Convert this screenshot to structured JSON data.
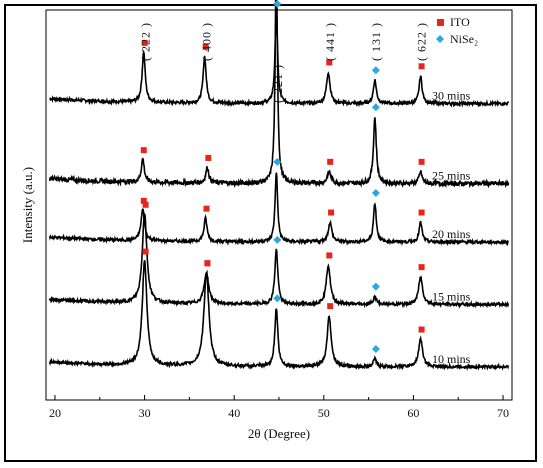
{
  "chart_data": {
    "type": "line",
    "title": "",
    "xlabel": "2θ (Degree)",
    "ylabel": "Intensity (a.u.)",
    "xlim": [
      19,
      71
    ],
    "xticks": [
      20,
      30,
      40,
      50,
      60,
      70
    ],
    "x_tick_labels": [
      "20",
      "30",
      "40",
      "50",
      "60",
      "70"
    ],
    "y_ticks_shown": false,
    "grid": false,
    "legend_position": "top-right",
    "legend": [
      {
        "name": "ITO",
        "marker": "square",
        "color": "#e8251b"
      },
      {
        "name": "NiSe₂",
        "marker": "diamond",
        "color": "#29a9e0"
      }
    ],
    "peak_labels": [
      {
        "text": "( 222 )",
        "x": 30.0
      },
      {
        "text": "( 400 )",
        "x": 36.8
      },
      {
        "text": "( 221 )",
        "x": 44.8
      },
      {
        "text": "( 441 )",
        "x": 50.6
      },
      {
        "text": "( 131 )",
        "x": 55.7
      },
      {
        "text": "( 622 )",
        "x": 60.8
      }
    ],
    "series": [
      {
        "name": "30  mins",
        "baseline": 0.76,
        "noise": 0.004,
        "peaks": [
          {
            "x": 29.9,
            "height": 0.13,
            "width": 0.3,
            "marker": "ITO"
          },
          {
            "x": 36.7,
            "height": 0.12,
            "width": 0.3,
            "marker": "ITO"
          },
          {
            "x": 44.7,
            "height": 0.23,
            "width": 0.25,
            "marker": "NiSe2"
          },
          {
            "x": 50.5,
            "height": 0.08,
            "width": 0.35,
            "marker": "ITO"
          },
          {
            "x": 55.7,
            "height": 0.06,
            "width": 0.3,
            "marker": "NiSe2"
          },
          {
            "x": 60.8,
            "height": 0.07,
            "width": 0.3,
            "marker": "ITO"
          }
        ]
      },
      {
        "name": "25 mins",
        "baseline": 0.555,
        "noise": 0.006,
        "peaks": [
          {
            "x": 29.8,
            "height": 0.06,
            "width": 0.3,
            "marker": "ITO"
          },
          {
            "x": 37.0,
            "height": 0.04,
            "width": 0.3,
            "marker": "ITO"
          },
          {
            "x": 44.7,
            "height": 0.58,
            "width": 0.22,
            "marker": "NiSe2"
          },
          {
            "x": 50.6,
            "height": 0.03,
            "width": 0.35,
            "marker": "ITO"
          },
          {
            "x": 55.7,
            "height": 0.17,
            "width": 0.28,
            "marker": "NiSe2"
          },
          {
            "x": 60.8,
            "height": 0.03,
            "width": 0.3,
            "marker": "ITO"
          }
        ]
      },
      {
        "name": "20  mins",
        "baseline": 0.405,
        "noise": 0.004,
        "peaks": [
          {
            "x": 29.8,
            "height": 0.08,
            "width": 0.35,
            "marker": "ITO"
          },
          {
            "x": 36.8,
            "height": 0.06,
            "width": 0.3,
            "marker": "ITO"
          },
          {
            "x": 44.7,
            "height": 0.18,
            "width": 0.25,
            "marker": "NiSe2"
          },
          {
            "x": 50.7,
            "height": 0.05,
            "width": 0.35,
            "marker": "ITO"
          },
          {
            "x": 55.7,
            "height": 0.1,
            "width": 0.28,
            "marker": "NiSe2"
          },
          {
            "x": 60.8,
            "height": 0.05,
            "width": 0.3,
            "marker": "ITO"
          }
        ]
      },
      {
        "name": "15  mins",
        "baseline": 0.245,
        "noise": 0.004,
        "peaks": [
          {
            "x": 30.0,
            "height": 0.23,
            "width": 0.45,
            "marker": "ITO"
          },
          {
            "x": 36.9,
            "height": 0.08,
            "width": 0.45,
            "marker": "ITO"
          },
          {
            "x": 44.7,
            "height": 0.14,
            "width": 0.3,
            "marker": "NiSe2"
          },
          {
            "x": 50.5,
            "height": 0.1,
            "width": 0.4,
            "marker": "ITO"
          },
          {
            "x": 55.7,
            "height": 0.02,
            "width": 0.3,
            "marker": "NiSe2"
          },
          {
            "x": 60.8,
            "height": 0.07,
            "width": 0.4,
            "marker": "ITO"
          }
        ]
      },
      {
        "name": "10  mins",
        "baseline": 0.085,
        "noise": 0.004,
        "peaks": [
          {
            "x": 30.0,
            "height": 0.27,
            "width": 0.45,
            "marker": "ITO"
          },
          {
            "x": 36.9,
            "height": 0.24,
            "width": 0.5,
            "marker": "ITO"
          },
          {
            "x": 44.7,
            "height": 0.15,
            "width": 0.3,
            "marker": "NiSe2"
          },
          {
            "x": 50.6,
            "height": 0.13,
            "width": 0.4,
            "marker": "ITO"
          },
          {
            "x": 55.7,
            "height": 0.02,
            "width": 0.3,
            "marker": "NiSe2"
          },
          {
            "x": 60.8,
            "height": 0.07,
            "width": 0.4,
            "marker": "ITO"
          }
        ]
      }
    ]
  }
}
